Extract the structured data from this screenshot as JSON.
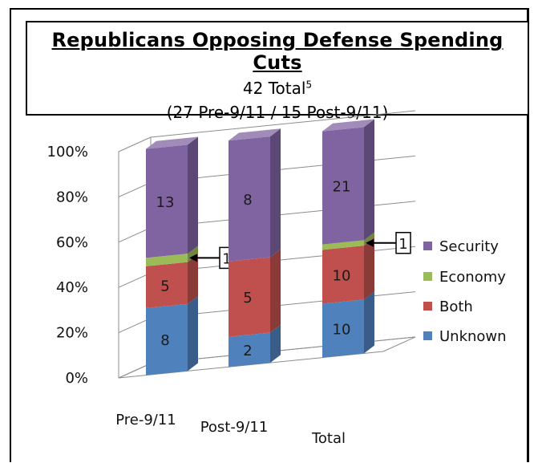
{
  "title": "Republicans Opposing Defense Spending Cuts",
  "subtitle_main": "42 Total",
  "subtitle_sup": "5",
  "subtitle_2": "(27 Pre-9/11 / 15 Post-9/11)",
  "colors": {
    "Unknown": "#4f81bd",
    "Both": "#c0504d",
    "Economy": "#9bbb59",
    "Security": "#8064a2"
  },
  "chart_data": {
    "type": "bar",
    "stacked": true,
    "percent": true,
    "categories": [
      "Pre-9/11",
      "Post-9/11",
      "Total"
    ],
    "series": [
      {
        "name": "Unknown",
        "values": [
          8,
          2,
          10
        ]
      },
      {
        "name": "Both",
        "values": [
          5,
          5,
          10
        ]
      },
      {
        "name": "Economy",
        "values": [
          1,
          0,
          1
        ]
      },
      {
        "name": "Security",
        "values": [
          13,
          8,
          21
        ]
      }
    ],
    "yticks": [
      "0%",
      "20%",
      "40%",
      "60%",
      "80%",
      "100%"
    ],
    "ylim": [
      0,
      100
    ],
    "legend": [
      "Security",
      "Economy",
      "Both",
      "Unknown"
    ],
    "legend_position": "right",
    "callouts": [
      {
        "category": "Pre-9/11",
        "label": "1"
      },
      {
        "category": "Total",
        "label": "1"
      }
    ]
  }
}
